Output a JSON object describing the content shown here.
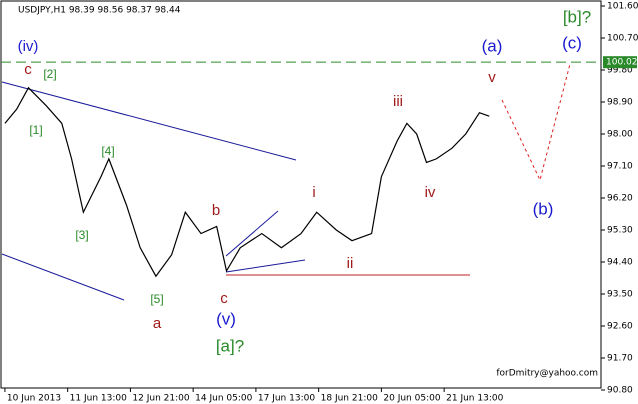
{
  "chart_data": {
    "type": "line",
    "title": "USDJPY,H1  98.39 98.56 98.37 98.44",
    "watermark": "forDmitry@yahoo.com",
    "x": [
      0,
      6,
      12,
      21,
      29,
      34,
      40,
      49,
      53,
      62,
      69,
      77,
      85,
      92,
      100,
      108,
      113,
      120,
      131,
      141,
      151,
      159,
      169,
      177,
      187,
      192,
      200,
      205,
      210,
      215,
      220,
      228,
      235,
      242,
      247
    ],
    "series": [
      {
        "name": "USDJPY",
        "color": "#000000",
        "values": [
          98.3,
          98.7,
          99.3,
          98.8,
          98.3,
          97.3,
          95.8,
          96.8,
          97.3,
          96.0,
          94.8,
          94.0,
          94.6,
          95.8,
          95.2,
          95.4,
          94.15,
          94.8,
          95.2,
          94.8,
          95.2,
          95.8,
          95.3,
          95.0,
          95.2,
          96.8,
          97.8,
          98.3,
          98.0,
          97.2,
          97.3,
          97.6,
          98.0,
          98.6,
          98.5
        ]
      }
    ],
    "xlim": [
      -2,
      304
    ],
    "xticks": [
      {
        "value": 0,
        "label": "10 Jun 2013"
      },
      {
        "value": 32,
        "label": "11 Jun 13:00"
      },
      {
        "value": 64,
        "label": "12 Jun 21:00"
      },
      {
        "value": 96,
        "label": "14 Jun 05:00"
      },
      {
        "value": 128,
        "label": "17 Jun 13:00"
      },
      {
        "value": 160,
        "label": "18 Jun 21:00"
      },
      {
        "value": 192,
        "label": "20 Jun 05:00"
      },
      {
        "value": 224,
        "label": "21 Jun 13:00"
      }
    ],
    "ylim": [
      90.8,
      101.6
    ],
    "yticks": [
      {
        "value": 101.6,
        "label": "101.60"
      },
      {
        "value": 100.7,
        "label": "100.70"
      },
      {
        "value": 99.8,
        "label": "99.80"
      },
      {
        "value": 98.9,
        "label": "98.90"
      },
      {
        "value": 98.0,
        "label": "98.00"
      },
      {
        "value": 97.1,
        "label": "97.10"
      },
      {
        "value": 96.2,
        "label": "96.20"
      },
      {
        "value": 95.3,
        "label": "95.30"
      },
      {
        "value": 94.4,
        "label": "94.40"
      },
      {
        "value": 93.5,
        "label": "93.50"
      },
      {
        "value": 92.6,
        "label": "92.60"
      },
      {
        "value": 91.7,
        "label": "91.70"
      },
      {
        "value": 90.8,
        "label": "90.80"
      }
    ],
    "level": 100.02,
    "level_color": "#2a8a2a",
    "annotations": [
      "(iv)",
      "c",
      "[2]",
      "[1]",
      "[4]",
      "[3]",
      "[5]",
      "a",
      "b",
      "c",
      "(v)",
      "[a]?",
      "i",
      "ii",
      "iii",
      "iv",
      "v",
      "(a)",
      "(b)",
      "(c)",
      "[b]?"
    ]
  }
}
